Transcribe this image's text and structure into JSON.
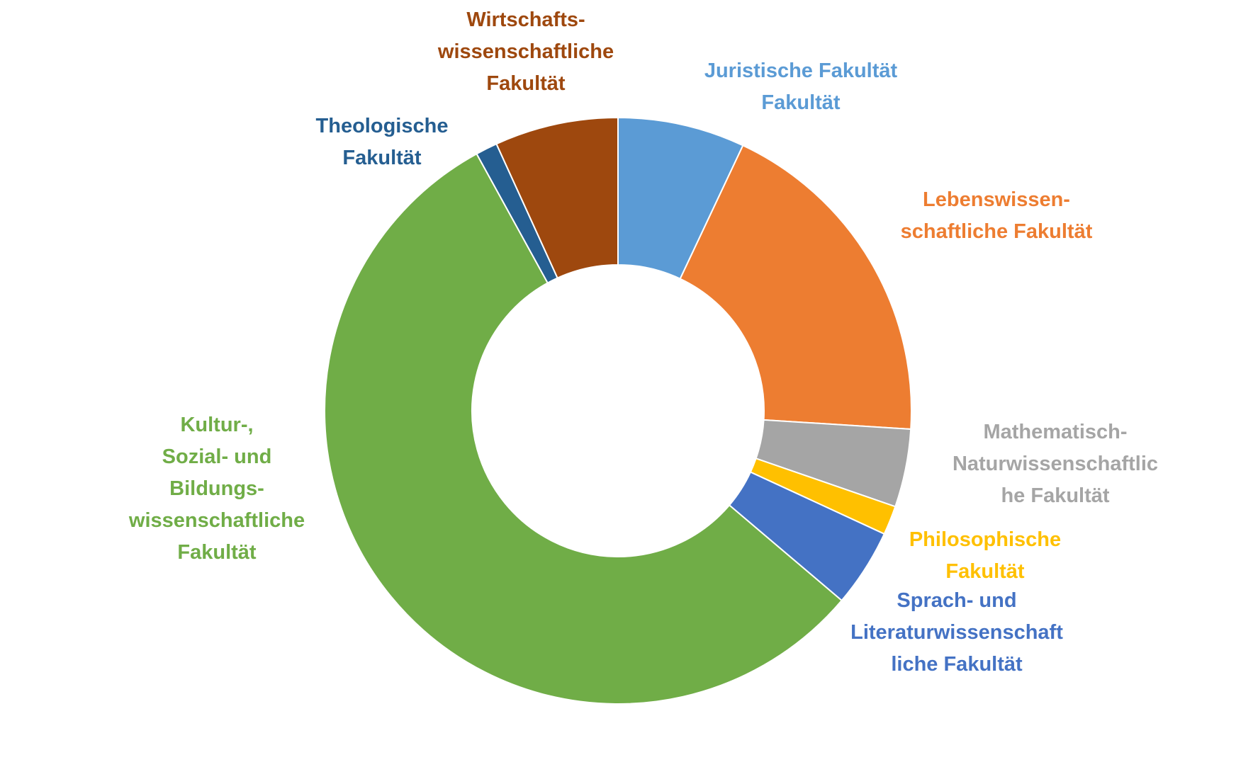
{
  "chart_data": {
    "type": "pie",
    "variant": "donut",
    "legend": "none",
    "slices": [
      {
        "label": [
          "Juristische Fakultät",
          "Fakultät"
        ],
        "value": 7.0,
        "color": "#5B9BD5"
      },
      {
        "label": [
          "Lebenswissen-",
          "schaftliche Fakultät"
        ],
        "value": 19.0,
        "color": "#ED7D31"
      },
      {
        "label": [
          "Mathematisch-",
          "Naturwissenschaftlic",
          "he Fakultät"
        ],
        "value": 4.3,
        "color": "#A5A5A5"
      },
      {
        "label": [
          "Philosophische",
          "Fakultät"
        ],
        "value": 1.6,
        "color": "#FFC000"
      },
      {
        "label": [
          "Sprach- und",
          "Literaturwissenschaft",
          "liche Fakultät"
        ],
        "value": 4.3,
        "color": "#4472C4"
      },
      {
        "label": [
          "Kultur-,",
          "Sozial- und",
          "Bildungs-",
          "wissenschaftliche",
          "Fakultät"
        ],
        "value": 55.8,
        "color": "#70AD47"
      },
      {
        "label": [
          "Theologische",
          "Fakultät"
        ],
        "value": 1.2,
        "color": "#255E91"
      },
      {
        "label": [
          "Wirtschafts-",
          "wissenschaftliche",
          "Fakultät"
        ],
        "value": 6.8,
        "color": "#9E480E"
      }
    ]
  }
}
